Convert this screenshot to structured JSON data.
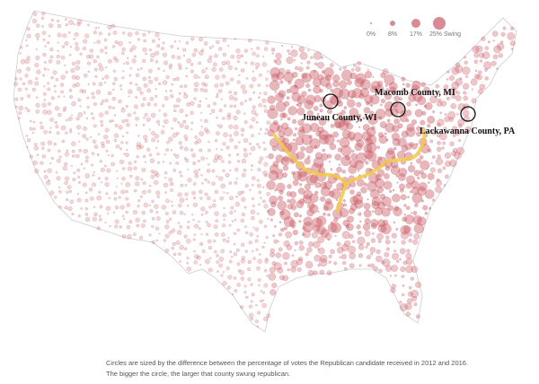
{
  "legend": {
    "labels": [
      "0%",
      "8%",
      "17%",
      "25% Swing"
    ]
  },
  "annotations": [
    "Juneau County, WI",
    "Macomb County, MI",
    "Lackawanna County, PA"
  ],
  "caption": [
    "Circles are sized by the difference between the percentage of votes the Republican candidate received in 2012 and 2016.",
    "The bigger the circle, the larger that county swung republican."
  ]
}
